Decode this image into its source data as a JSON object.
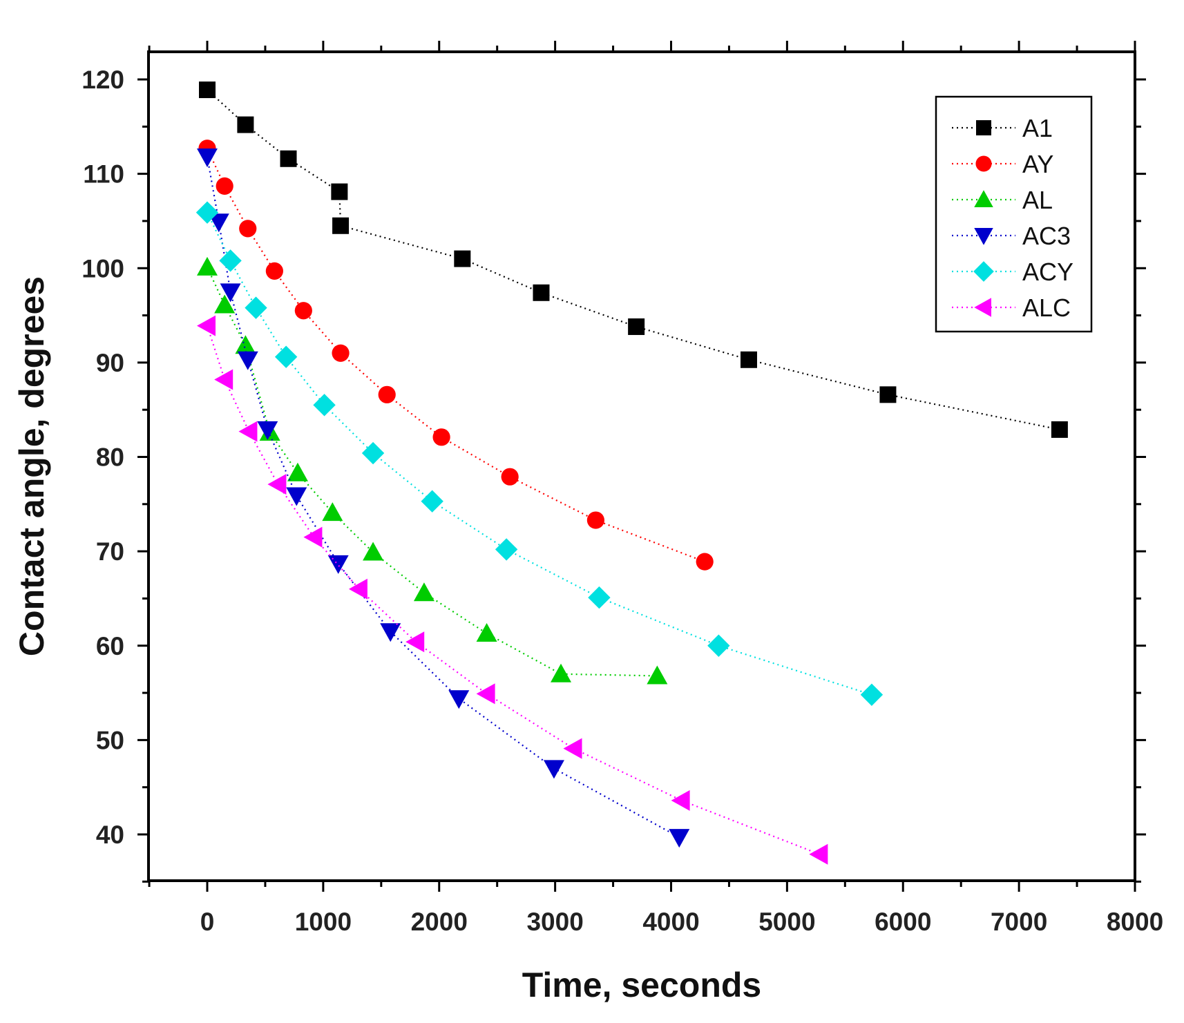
{
  "chart_data": {
    "type": "line",
    "xlabel": "Time, seconds",
    "ylabel": "Contact angle, degrees",
    "xlim": [
      -500,
      8000
    ],
    "ylim": [
      35,
      120
    ],
    "xticks": [
      0,
      1000,
      2000,
      3000,
      4000,
      5000,
      6000,
      7000,
      8000
    ],
    "yticks": [
      40,
      50,
      60,
      70,
      80,
      90,
      100,
      110,
      120
    ],
    "grid": false,
    "legend_position": "top-right",
    "line_style": "dotted",
    "series": [
      {
        "name": "A1",
        "color": "#000000",
        "marker": "square",
        "x": [
          0,
          330,
          700,
          1140,
          1150,
          2200,
          2880,
          3700,
          4670,
          5870,
          7350
        ],
        "y": [
          118.9,
          115.2,
          111.6,
          108.1,
          104.5,
          101.0,
          97.4,
          93.8,
          90.3,
          86.6,
          82.9
        ]
      },
      {
        "name": "AY",
        "color": "#ff0000",
        "marker": "circle",
        "x": [
          0,
          150,
          350,
          580,
          830,
          1150,
          1550,
          2020,
          2610,
          3350,
          4290
        ],
        "y": [
          112.7,
          108.7,
          104.2,
          99.7,
          95.5,
          91.0,
          86.6,
          82.1,
          77.9,
          73.3,
          68.9
        ]
      },
      {
        "name": "AL",
        "color": "#00cc00",
        "marker": "triangle-up",
        "x": [
          0,
          150,
          330,
          540,
          780,
          1080,
          1430,
          1870,
          2410,
          3050,
          3880
        ],
        "y": [
          100.1,
          96.1,
          91.8,
          82.6,
          78.3,
          74.1,
          69.9,
          65.6,
          61.3,
          57.0,
          56.8
        ]
      },
      {
        "name": "AC3",
        "color": "#0000cc",
        "marker": "triangle-down",
        "x": [
          0,
          100,
          200,
          350,
          520,
          770,
          1130,
          1580,
          2170,
          2990,
          4070
        ],
        "y": [
          111.8,
          104.9,
          97.5,
          90.3,
          82.9,
          75.9,
          68.7,
          61.5,
          54.4,
          47.0,
          39.7
        ]
      },
      {
        "name": "ACY",
        "color": "#00e0e0",
        "marker": "diamond",
        "x": [
          0,
          200,
          420,
          680,
          1010,
          1430,
          1940,
          2580,
          3380,
          4410,
          5730
        ],
        "y": [
          105.9,
          100.8,
          95.8,
          90.6,
          85.5,
          80.4,
          75.3,
          70.2,
          65.1,
          60.0,
          54.8
        ]
      },
      {
        "name": "ALC",
        "color": "#ff00ff",
        "marker": "triangle-left",
        "x": [
          0,
          150,
          360,
          610,
          920,
          1310,
          1800,
          2410,
          3160,
          4090,
          5280
        ],
        "y": [
          93.9,
          88.2,
          82.7,
          77.1,
          71.5,
          66.0,
          60.4,
          54.9,
          49.1,
          43.6,
          37.9
        ]
      }
    ]
  }
}
